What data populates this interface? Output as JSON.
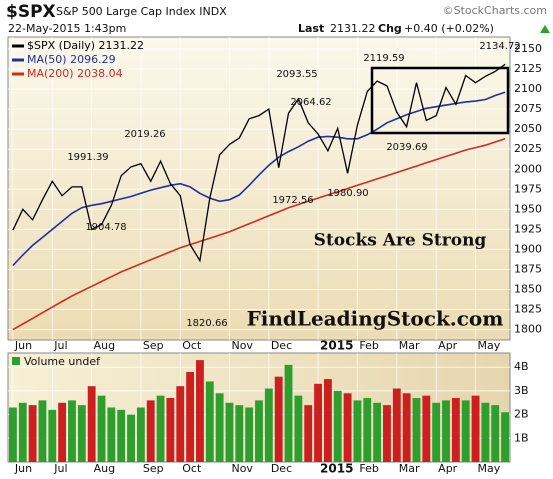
{
  "header": {
    "symbol": "$SPX",
    "name": "S&P 500 Large Cap Index INDX",
    "source": "©StockCharts.com",
    "datetime": "22-May-2015 1:43pm",
    "last_label": "Last",
    "last": "2131.22",
    "chg_label": "Chg",
    "chg": "+0.40 (+0.02%)"
  },
  "chart_data": [
    {
      "type": "line",
      "categories": [
        "Jun",
        null,
        null,
        null,
        "Jul",
        null,
        null,
        null,
        "Aug",
        null,
        null,
        null,
        null,
        "Sep",
        null,
        null,
        null,
        "Oct",
        null,
        null,
        null,
        null,
        "Nov",
        null,
        null,
        null,
        "Dec",
        null,
        null,
        null,
        null,
        "2015",
        null,
        null,
        null,
        "Feb",
        null,
        null,
        null,
        "Mar",
        null,
        null,
        null,
        "Apr",
        null,
        null,
        null,
        "May",
        null,
        null,
        null
      ],
      "series": [
        {
          "name": "$SPX (Daily) 2131.22",
          "color": "#000000",
          "values": [
            1924,
            1950,
            1937,
            1962,
            1985,
            1967,
            1978,
            1978,
            1925,
            1931,
            1955,
            1992,
            2003,
            2007,
            1985,
            2010,
            1982,
            1967,
            1906,
            1886,
            1964,
            2018,
            2031,
            2039,
            2063,
            2067,
            2075,
            2002,
            2070,
            2088,
            2058,
            2044,
            2023,
            2051,
            1995,
            2055,
            2097,
            2110,
            2104,
            2071,
            2053,
            2108,
            2061,
            2067,
            2102,
            2081,
            2117,
            2108,
            2116,
            2122,
            2131
          ]
        },
        {
          "name": "MA(50) 2096.29",
          "color": "#1f2fa0",
          "values": [
            1880,
            1893,
            1905,
            1915,
            1925,
            1935,
            1945,
            1952,
            1955,
            1957,
            1960,
            1963,
            1966,
            1970,
            1974,
            1977,
            1980,
            1982,
            1978,
            1970,
            1964,
            1960,
            1962,
            1968,
            1980,
            1993,
            2005,
            2015,
            2022,
            2028,
            2035,
            2040,
            2041,
            2040,
            2038,
            2038,
            2043,
            2050,
            2058,
            2063,
            2068,
            2072,
            2076,
            2078,
            2080,
            2082,
            2084,
            2085,
            2087,
            2092,
            2096
          ]
        },
        {
          "name": "MA(200) 2038.04",
          "color": "#d42a1e",
          "values": [
            1800,
            1807,
            1814,
            1821,
            1828,
            1835,
            1842,
            1848,
            1854,
            1860,
            1866,
            1872,
            1877,
            1882,
            1887,
            1892,
            1897,
            1902,
            1906,
            1910,
            1914,
            1918,
            1922,
            1927,
            1932,
            1937,
            1942,
            1947,
            1952,
            1956,
            1960,
            1964,
            1968,
            1972,
            1976,
            1980,
            1984,
            1988,
            1992,
            1996,
            2000,
            2004,
            2008,
            2012,
            2016,
            2020,
            2024,
            2027,
            2030,
            2034,
            2038
          ]
        }
      ],
      "ylim": [
        1787,
        2165
      ],
      "yticks": [
        1800,
        1825,
        1850,
        1875,
        1900,
        1925,
        1950,
        1975,
        2000,
        2025,
        2050,
        2075,
        2100,
        2125,
        2150
      ],
      "grid": true,
      "annotations": [
        "1991.39",
        "1904.78",
        "2019.26",
        "1820.66",
        "2093.55",
        "2064.62",
        "1972.56",
        "1980.90",
        "2119.59",
        "2039.69",
        "2134.72",
        "Stocks Are Strong",
        "FindLeadingStock.com"
      ]
    },
    {
      "type": "bar",
      "title": "Volume undef",
      "categories": [
        "Jun",
        null,
        null,
        null,
        "Jul",
        null,
        null,
        null,
        "Aug",
        null,
        null,
        null,
        null,
        "Sep",
        null,
        null,
        null,
        "Oct",
        null,
        null,
        null,
        null,
        "Nov",
        null,
        null,
        null,
        "Dec",
        null,
        null,
        null,
        null,
        "2015",
        null,
        null,
        null,
        "Feb",
        null,
        null,
        null,
        "Mar",
        null,
        null,
        null,
        "Apr",
        null,
        null,
        null,
        "May",
        null,
        null,
        null
      ],
      "values": [
        2.3,
        2.5,
        2.4,
        2.6,
        2.2,
        2.5,
        2.6,
        2.4,
        3.2,
        2.8,
        2.3,
        2.2,
        2.0,
        2.3,
        2.6,
        2.8,
        2.7,
        3.2,
        3.8,
        4.3,
        3.4,
        2.9,
        2.5,
        2.4,
        2.3,
        2.6,
        3.1,
        3.6,
        4.1,
        2.8,
        2.4,
        3.3,
        3.5,
        3.0,
        2.9,
        2.6,
        2.7,
        2.5,
        2.4,
        3.1,
        2.9,
        2.7,
        2.8,
        2.5,
        2.6,
        2.7,
        2.6,
        2.8,
        2.5,
        2.4,
        2.1
      ],
      "up_color": "#2e9e2e",
      "down_color": "#cc1f1f",
      "ylim": [
        0,
        4.6
      ],
      "yticks": [
        {
          "value": 1,
          "label": "1B"
        },
        {
          "value": 2,
          "label": "2B"
        },
        {
          "value": 3,
          "label": "3B"
        },
        {
          "value": 4,
          "label": "4B"
        }
      ],
      "grid": true
    }
  ]
}
